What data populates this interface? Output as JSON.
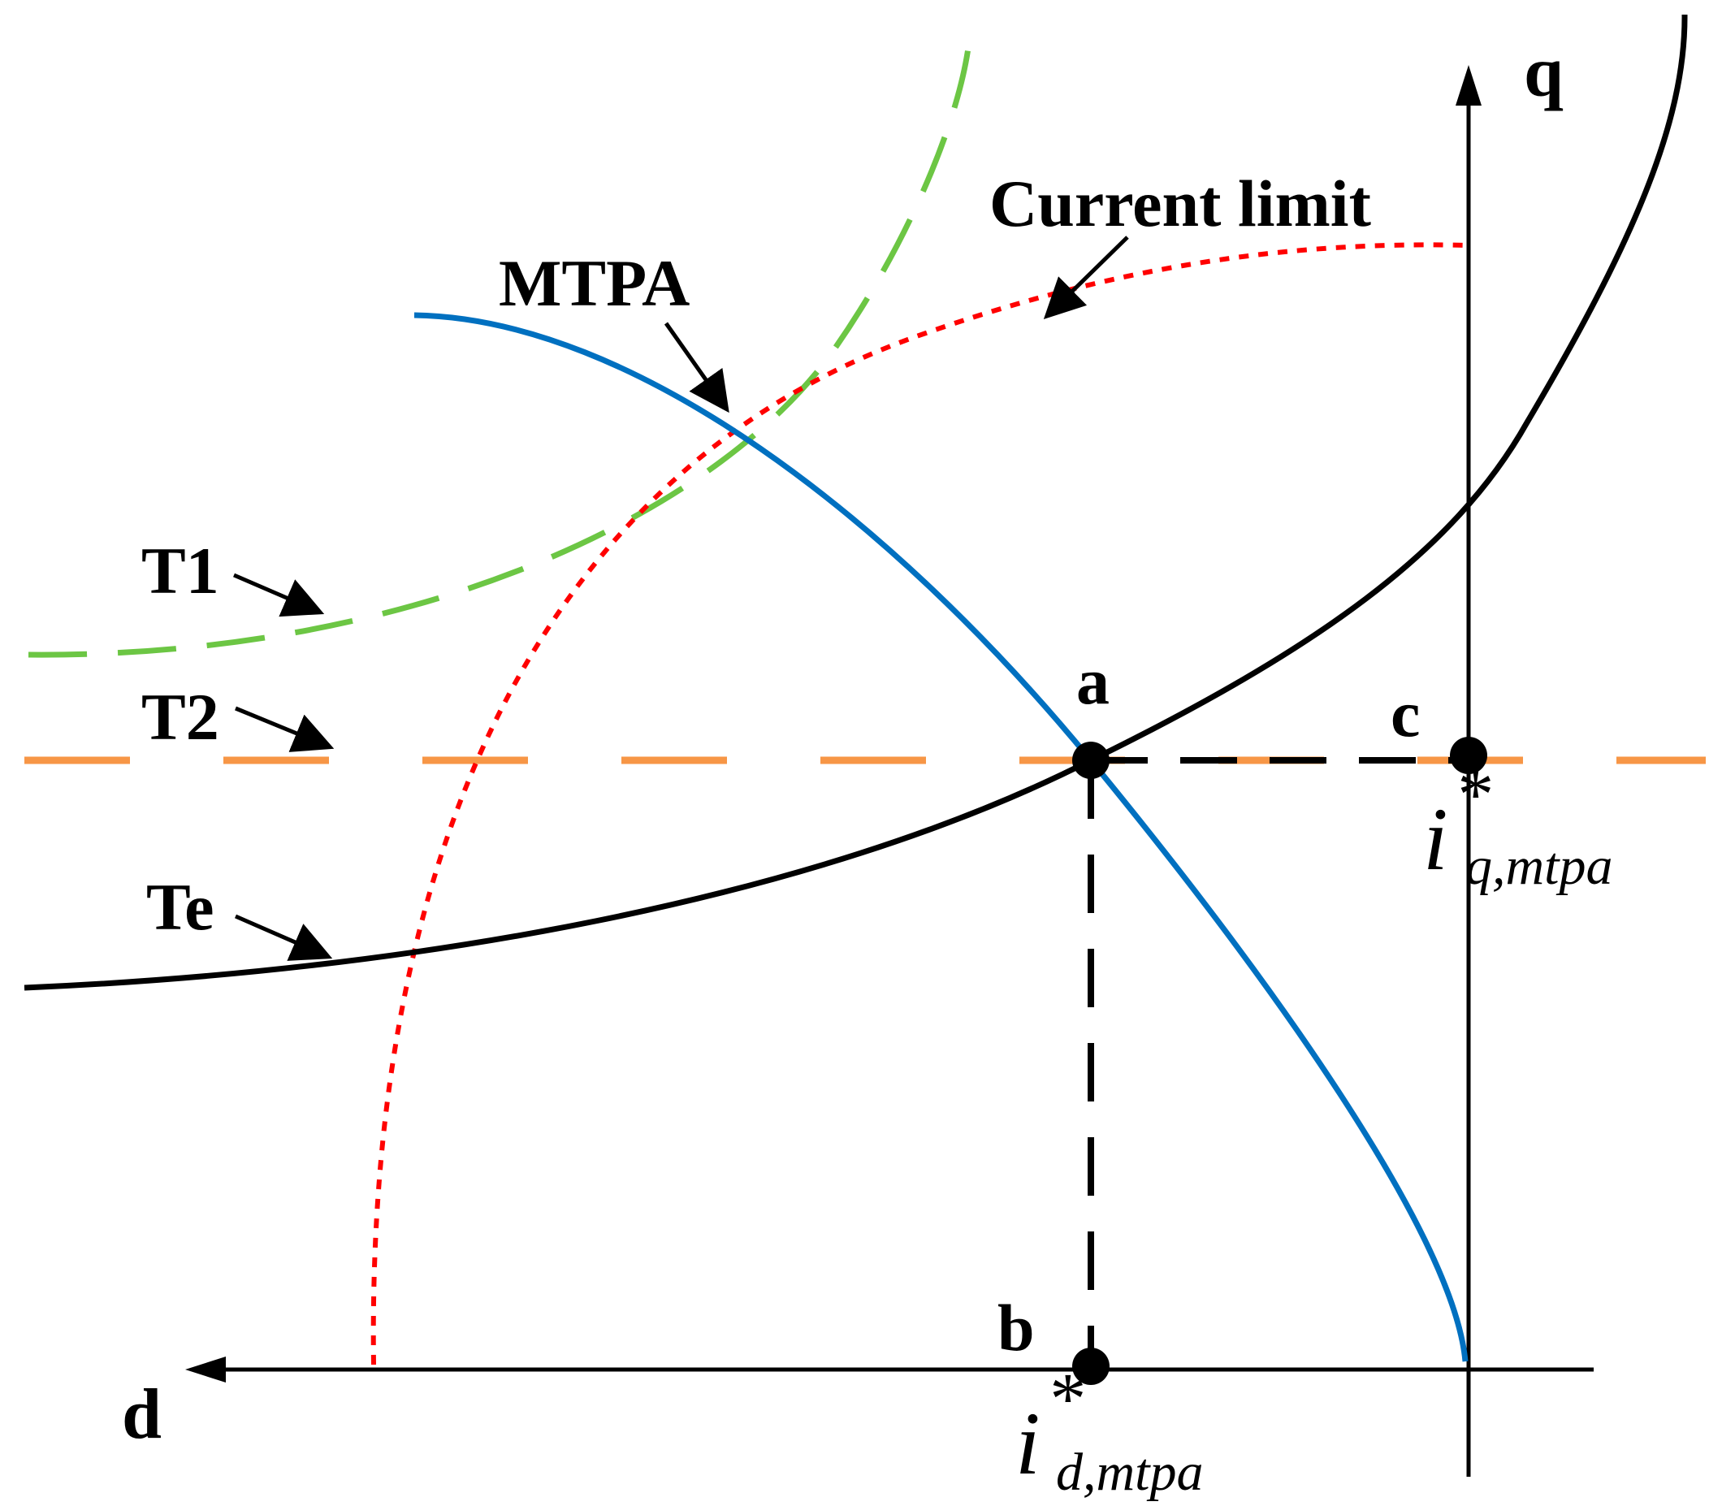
{
  "labels": {
    "q_axis": "q",
    "d_axis": "d",
    "current_limit": "Current limit",
    "mtpa": "MTPA",
    "t1": "T1",
    "t2": "T2",
    "te": "Te",
    "point_a": "a",
    "point_b": "b",
    "point_c": "c",
    "iq_main": "i",
    "iq_star": "*",
    "iq_sub": "q,mtpa",
    "id_main": "i",
    "id_star": "*",
    "id_sub": "d,mtpa"
  },
  "colors": {
    "axis": "#000000",
    "mtpa": "#0070C0",
    "current_limit": "#FF0000",
    "t1": "#6CC644",
    "t2": "#F79646",
    "te": "#000000",
    "projection": "#000000"
  }
}
